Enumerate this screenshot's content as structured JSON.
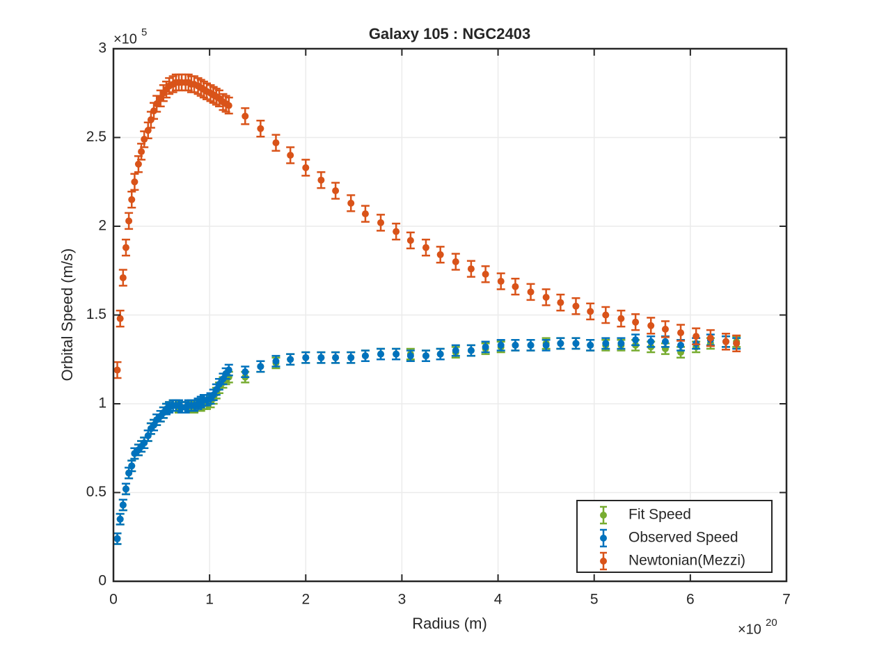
{
  "chart_data": {
    "type": "errorbar-scatter",
    "title": "Galaxy 105 : NGC2403",
    "x_label": "Radius (m)",
    "y_label": "Orbital Speed (m/s)",
    "x_exponent": {
      "base": "×10",
      "power": "20"
    },
    "y_exponent": {
      "base": "×10",
      "power": "5"
    },
    "xlim": [
      0,
      7
    ],
    "ylim": [
      0,
      3
    ],
    "xticks": [
      0,
      1,
      2,
      3,
      4,
      5,
      6,
      7
    ],
    "yticks": [
      0,
      0.5,
      1,
      1.5,
      2,
      2.5,
      3
    ],
    "grid": true,
    "legend": "south-east",
    "x": [
      0.04,
      0.07,
      0.1,
      0.13,
      0.16,
      0.19,
      0.22,
      0.26,
      0.29,
      0.32,
      0.36,
      0.39,
      0.42,
      0.45,
      0.49,
      0.52,
      0.55,
      0.58,
      0.62,
      0.65,
      0.68,
      0.71,
      0.75,
      0.78,
      0.81,
      0.84,
      0.88,
      0.91,
      0.94,
      0.97,
      1.01,
      1.04,
      1.07,
      1.1,
      1.14,
      1.17,
      1.2,
      1.37,
      1.53,
      1.69,
      1.84,
      2.0,
      2.16,
      2.31,
      2.47,
      2.62,
      2.78,
      2.94,
      3.09,
      3.25,
      3.4,
      3.56,
      3.72,
      3.87,
      4.03,
      4.18,
      4.34,
      4.5,
      4.65,
      4.81,
      4.96,
      5.12,
      5.28,
      5.43,
      5.59,
      5.74,
      5.9,
      6.06,
      6.21,
      6.37,
      6.48
    ],
    "series": [
      {
        "name": "Fit Speed",
        "color": "#77ac30",
        "error": 0.03,
        "values": [
          0.24,
          0.35,
          0.43,
          0.52,
          0.61,
          0.65,
          0.72,
          0.74,
          0.76,
          0.78,
          0.82,
          0.86,
          0.88,
          0.91,
          0.93,
          0.95,
          0.97,
          0.98,
          0.99,
          0.99,
          0.98,
          0.98,
          0.98,
          0.98,
          0.98,
          0.98,
          0.99,
          0.99,
          1.0,
          1.0,
          1.01,
          1.03,
          1.06,
          1.09,
          1.12,
          1.14,
          1.15,
          1.15,
          1.21,
          1.23,
          1.25,
          1.26,
          1.26,
          1.26,
          1.26,
          1.27,
          1.28,
          1.28,
          1.28,
          1.27,
          1.28,
          1.29,
          1.3,
          1.31,
          1.32,
          1.33,
          1.33,
          1.34,
          1.34,
          1.34,
          1.33,
          1.33,
          1.33,
          1.33,
          1.32,
          1.31,
          1.29,
          1.32,
          1.34,
          1.35,
          1.35
        ]
      },
      {
        "name": "Observed Speed",
        "color": "#0072bd",
        "error": 0.03,
        "values": [
          0.24,
          0.35,
          0.43,
          0.52,
          0.61,
          0.65,
          0.72,
          0.74,
          0.76,
          0.78,
          0.82,
          0.86,
          0.88,
          0.91,
          0.93,
          0.95,
          0.97,
          0.98,
          0.99,
          0.99,
          0.99,
          0.98,
          0.98,
          0.99,
          0.99,
          0.99,
          1.0,
          1.01,
          1.02,
          1.02,
          1.03,
          1.05,
          1.08,
          1.11,
          1.14,
          1.17,
          1.19,
          1.18,
          1.21,
          1.24,
          1.25,
          1.26,
          1.26,
          1.26,
          1.26,
          1.27,
          1.28,
          1.28,
          1.27,
          1.27,
          1.28,
          1.3,
          1.3,
          1.32,
          1.33,
          1.33,
          1.33,
          1.33,
          1.34,
          1.34,
          1.33,
          1.34,
          1.34,
          1.36,
          1.35,
          1.35,
          1.33,
          1.34,
          1.36,
          1.35,
          1.34
        ]
      },
      {
        "name": "Newtonian(Mezzi)",
        "color": "#d95319",
        "error": 0.045,
        "values": [
          1.19,
          1.48,
          1.71,
          1.88,
          2.03,
          2.15,
          2.25,
          2.35,
          2.42,
          2.49,
          2.54,
          2.6,
          2.65,
          2.69,
          2.72,
          2.75,
          2.77,
          2.79,
          2.8,
          2.81,
          2.81,
          2.81,
          2.81,
          2.81,
          2.8,
          2.8,
          2.79,
          2.78,
          2.77,
          2.76,
          2.75,
          2.74,
          2.73,
          2.72,
          2.7,
          2.69,
          2.68,
          2.62,
          2.55,
          2.47,
          2.4,
          2.33,
          2.26,
          2.2,
          2.13,
          2.07,
          2.02,
          1.97,
          1.92,
          1.88,
          1.84,
          1.8,
          1.76,
          1.73,
          1.69,
          1.66,
          1.63,
          1.6,
          1.57,
          1.55,
          1.52,
          1.5,
          1.48,
          1.46,
          1.44,
          1.42,
          1.4,
          1.38,
          1.37,
          1.35,
          1.34
        ]
      }
    ]
  }
}
